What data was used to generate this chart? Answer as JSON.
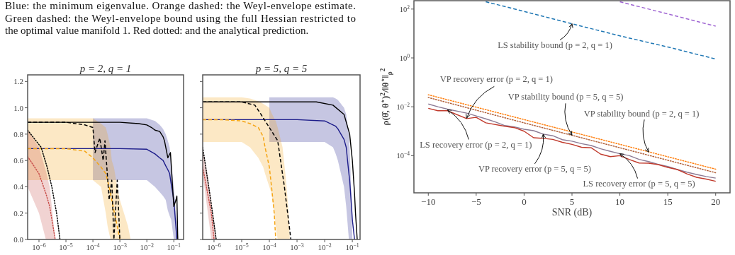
{
  "chart_data": [
    {
      "type": "line",
      "title": "p = 2,  q = 1",
      "log": "x",
      "annotations": [
        "Blue: the minimum eigenvalue. Orange dashed: the Weyl-envelope estimate.",
        "Green dashed: the Weyl-envelope bound using the full Hessian restricted to",
        "the optimal value manifold 1. Red dotted: and the analytical prediction."
      ],
      "xlim": [
        3.8e-07,
        0.23
      ],
      "xticks": [
        {
          "value": 1e-06,
          "label": "10$^{−6}$"
        },
        {
          "value": 1e-05,
          "label": "10$^{−5}$"
        },
        {
          "value": 0.0001,
          "label": "10$^{−4}$"
        },
        {
          "value": 0.001,
          "label": "10$^{−3}$"
        },
        {
          "value": 0.01,
          "label": "10$^{−2}$"
        },
        {
          "value": 0.1,
          "label": "10$^{−1}$"
        }
      ],
      "ylim": [
        0,
        1.25
      ],
      "yticks": [
        {
          "value": 0,
          "label": "0.0"
        },
        0.2,
        0.4,
        0.6,
        0.8,
        {
          "value": 1,
          "label": "1.0"
        },
        1.2
      ],
      "series": [
        {
          "color": "#1c1c8a",
          "line_style": "solid",
          "x": [
            3.8e-07,
            0.0001,
            0.001,
            0.01,
            0.02,
            0.03,
            0.04,
            0.05,
            0.06,
            0.07,
            0.08,
            0.1,
            0.13,
            0.15
          ],
          "values": [
            0.69,
            0.69,
            0.69,
            0.685,
            0.65,
            0.62,
            0.6,
            0.56,
            0.53,
            0.5,
            0.42,
            0.3,
            0,
            null
          ],
          "lower": [
            null,
            0.45,
            0.45,
            0.45,
            0.4,
            0.36,
            0.33,
            0.3,
            0.22,
            0.18,
            0.15,
            0,
            0,
            0
          ],
          "upper": [
            null,
            0.92,
            0.92,
            0.92,
            0.9,
            0.87,
            0.84,
            0.8,
            0.75,
            0.7,
            0.6,
            0.4,
            0.1,
            0
          ]
        },
        {
          "color": "#f5a516",
          "line_style": "dashed",
          "x": [
            3.8e-07,
            4e-06,
            1e-05,
            5e-05,
            0.0001,
            0.0002,
            0.0003,
            0.00035,
            0.00045,
            0.0005,
            0.0006,
            0.0008,
            0.001,
            0.002,
            0.0025
          ],
          "values": [
            0.69,
            0.69,
            0.69,
            0.67,
            0.62,
            0.55,
            0.5,
            0.45,
            0.35,
            0.3,
            0.22,
            0.1,
            0,
            null,
            null
          ],
          "lower": [
            0.45,
            0.45,
            0.45,
            0.45,
            0.45,
            0.4,
            0.2,
            0.1,
            0,
            0,
            0,
            0,
            0,
            0,
            0
          ],
          "upper": [
            0.92,
            0.92,
            0.92,
            0.92,
            0.92,
            0.88,
            0.85,
            0.8,
            0.7,
            0.6,
            0.55,
            0.4,
            0.3,
            0.1,
            0
          ]
        },
        {
          "color": "#c9504c",
          "line_style": "dotted",
          "x": [
            3.8e-07,
            1e-06,
            1.8e-06,
            2.5e-06,
            4e-06
          ],
          "values": [
            0.63,
            0.5,
            0.35,
            0.25,
            0
          ],
          "lower": [
            0.4,
            0.2,
            0,
            0,
            0
          ],
          "upper": [
            0.83,
            0.7,
            0.52,
            0.4,
            0
          ]
        },
        {
          "color": "#000000",
          "line_style": "solid",
          "x": [
            3.8e-07,
            0.001,
            0.005,
            0.01,
            0.015,
            0.02,
            0.03,
            0.04,
            0.045,
            0.06,
            0.075,
            0.09,
            0.1,
            0.12,
            0.13,
            0.14
          ],
          "values": [
            0.89,
            0.89,
            0.88,
            0.87,
            0.85,
            0.83,
            0.82,
            0.78,
            0.75,
            0.62,
            0.66,
            0.4,
            0.25,
            0.3,
            0.33,
            0
          ]
        },
        {
          "color": "#000000",
          "line_style": "dashed",
          "x": [
            3.8e-07,
            1e-05,
            5e-05,
            0.0001,
            0.00012,
            0.00018,
            0.00024,
            0.00028,
            0.0004,
            0.0005,
            0.0006,
            0.0008,
            0.001
          ],
          "values": [
            0.89,
            0.89,
            0.87,
            0.85,
            0.66,
            0.77,
            0.6,
            0.75,
            0.3,
            0.45,
            0,
            0.45,
            0
          ]
        },
        {
          "color": "#000000",
          "line_style": "dotted",
          "x": [
            3.8e-07,
            1.2e-06,
            2e-06,
            3e-06,
            4.5e-06,
            6e-06
          ],
          "values": [
            0.83,
            0.7,
            0.55,
            0.4,
            0.2,
            0
          ]
        }
      ]
    },
    {
      "type": "line",
      "title": "p = 5,  q = 5",
      "log": "x",
      "tick_labels": "x",
      "xlim": [
        3.9e-07,
        0.19
      ],
      "xticks": [
        {
          "value": 1e-06,
          "label": "10$^{−6}$"
        },
        {
          "value": 1e-05,
          "label": "10$^{−5}$"
        },
        {
          "value": 0.0001,
          "label": "10$^{−4}$"
        },
        {
          "value": 0.001,
          "label": "10$^{−3}$"
        },
        {
          "value": 0.01,
          "label": "10$^{−2}$"
        },
        {
          "value": 0.1,
          "label": "10$^{−1}$"
        }
      ],
      "ylim": [
        0,
        1.25
      ],
      "yticks": [
        0,
        0.2,
        0.4,
        0.6,
        0.8,
        1,
        1.2
      ],
      "series": [
        {
          "color": "#1c1c8a",
          "line_style": "solid",
          "x": [
            3.9e-07,
            0.0001,
            0.001,
            0.01,
            0.02,
            0.025,
            0.03,
            0.05,
            0.06,
            0.075,
            0.08,
            0.09,
            0.1,
            0.12
          ],
          "values": [
            0.91,
            0.91,
            0.91,
            0.9,
            0.87,
            0.86,
            0.84,
            0.76,
            0.7,
            0.5,
            0.45,
            0.3,
            0.15,
            0
          ],
          "lower": [
            null,
            0.74,
            0.74,
            0.74,
            0.7,
            0.65,
            0.6,
            0.4,
            0.25,
            0,
            0,
            0,
            0,
            null
          ],
          "upper": [
            null,
            1.08,
            1.08,
            1.08,
            1.08,
            1.07,
            1.06,
            1.0,
            0.95,
            0.8,
            0.7,
            0.4,
            0,
            null
          ]
        },
        {
          "color": "#f5a516",
          "line_style": "dashed",
          "x": [
            3.9e-07,
            2e-06,
            1e-05,
            2e-05,
            4e-05,
            6e-05,
            7e-05,
            0.0001,
            0.00012,
            0.00015,
            0.00017,
            0.0002,
            0.0003,
            0.0004,
            0.0005,
            0.00055
          ],
          "values": [
            0.91,
            0.91,
            0.9,
            0.88,
            0.85,
            0.78,
            0.7,
            0.55,
            0.4,
            0.2,
            0,
            null,
            null,
            null,
            null,
            null
          ],
          "lower": [
            0.74,
            0.74,
            0.74,
            0.7,
            0.62,
            0.55,
            0.5,
            0.4,
            0.35,
            0.2,
            0.1,
            0,
            0,
            0,
            0,
            0
          ],
          "upper": [
            1.08,
            1.08,
            1.08,
            1.07,
            1.05,
            1.03,
            1.02,
            1.0,
            0.96,
            0.92,
            0.9,
            0.85,
            0.7,
            0.45,
            0.2,
            0
          ]
        },
        {
          "color": "#c9504c",
          "line_style": "dotted",
          "x": [
            3.9e-07,
            8e-07,
            1e-06,
            1.2e-06
          ],
          "values": [
            0.55,
            0.2,
            0,
            null
          ],
          "lower": [
            0.5,
            0,
            0,
            0
          ],
          "upper": [
            0.7,
            0.3,
            0.15,
            0
          ]
        },
        {
          "color": "#000000",
          "line_style": "solid",
          "x": [
            3.9e-07,
            0.005,
            0.02,
            0.05,
            0.08,
            0.1,
            0.12,
            0.13,
            0.15
          ],
          "values": [
            1.045,
            1.045,
            1.02,
            0.95,
            0.8,
            0.6,
            0.35,
            0.2,
            0
          ]
        },
        {
          "color": "#000000",
          "line_style": "dashed",
          "x": [
            3.9e-07,
            1e-05,
            3e-05,
            5e-05,
            0.0001,
            0.0002,
            0.00035,
            0.0004,
            0.0006
          ],
          "values": [
            1.045,
            1.045,
            1.02,
            0.95,
            0.85,
            0.75,
            0.4,
            0.3,
            0
          ]
        },
        {
          "color": "#000000",
          "line_style": "dotted",
          "x": [
            3.9e-07,
            7e-07,
            1.2e-06
          ],
          "values": [
            0.7,
            0.35,
            0
          ]
        }
      ]
    },
    {
      "type": "line",
      "log": "y",
      "xlabel": "SNR (dB)",
      "ylabel": "ρ(θ̂, θ$^{⋆}$)$^{2}$/‖θ$^{⋆}$‖$_{ρ}$$^{2}$",
      "xlim": [
        -11.5,
        21.5
      ],
      "xticks": [
        {
          "value": -10,
          "label": "−10"
        },
        {
          "value": -5,
          "label": "−5"
        },
        0,
        5,
        10,
        15,
        20
      ],
      "ylim": [
        3e-06,
        220
      ],
      "yticks": [
        {
          "value": 100,
          "label": "10$^{2}$"
        },
        {
          "value": 1,
          "label": "10$^{0}$"
        },
        {
          "value": 0.01,
          "label": "10$^{−2}$"
        },
        {
          "value": 0.0001,
          "label": "10$^{−4}$"
        }
      ],
      "annotations": [
        {
          "text": "LS stability bound (p = 2, q = 1)",
          "x": 5,
          "y": 25
        },
        {
          "text": "VP recovery error (p = 2, q = 1)",
          "x": -6,
          "y": 0.0034
        },
        {
          "text": "VP stability bound (p = 5, q = 5)",
          "x": 5,
          "y": 0.00069
        },
        {
          "text": "VP stability bound (p = 2, q = 1)",
          "x": 13,
          "y": 0.00014
        },
        {
          "text": "LS recovery error (p = 2, q = 1)",
          "x": -8,
          "y": 0.0075
        },
        {
          "text": "VP recovery error (p = 5, q = 5)",
          "x": 2,
          "y": 0.00076
        },
        {
          "text": "LS recovery error (p = 5, q = 5)",
          "x": 10,
          "y": 0.00012
        }
      ],
      "series": [
        {
          "color": "#1f77b4",
          "line_style": "dashed",
          "x": [
            -4,
            0,
            5,
            10,
            15,
            20
          ],
          "values": [
            200,
            80,
            25,
            8,
            2.8,
            0.9
          ]
        },
        {
          "color": "#a066d3",
          "line_style": "dashed",
          "x": [
            10,
            15,
            20
          ],
          "values": [
            200,
            63,
            20
          ]
        },
        {
          "color": "#ff7f0e",
          "line_style": "dotted",
          "x": [
            -10,
            0,
            10,
            20
          ],
          "values": [
            0.031,
            0.003,
            0.00029,
            2.8e-05
          ]
        },
        {
          "color": "#b0603a",
          "line_style": "dotted",
          "x": [
            -10,
            0,
            10,
            20
          ],
          "values": [
            0.024,
            0.0022,
            0.00021,
            2e-05
          ]
        },
        {
          "color": "#8c7b95",
          "line_style": "solid",
          "x": [
            -10,
            -9,
            -8,
            -6,
            -5,
            -4,
            -3,
            -2,
            -1,
            0,
            1,
            2,
            3,
            4,
            5,
            6,
            7,
            8,
            9,
            10,
            11,
            12,
            13,
            14,
            15,
            16,
            17,
            18,
            19,
            20
          ],
          "values": [
            0.013,
            0.01,
            0.008,
            0.0055,
            0.0042,
            0.0032,
            0.0024,
            0.0017,
            0.0015,
            0.0012,
            0.00105,
            0.00076,
            0.00065,
            0.00045,
            0.00039,
            0.00031,
            0.00026,
            0.00019,
            0.00015,
            0.00012,
            0.0001,
            7e-05,
            5.7e-05,
            4.4e-05,
            3.6e-05,
            2.7e-05,
            2.1e-05,
            1.7e-05,
            1.4e-05,
            1.2e-05
          ]
        },
        {
          "color": "#c0392b",
          "line_style": "solid",
          "x": [
            -10,
            -9,
            -8,
            -6,
            -5,
            -4,
            -2,
            -1,
            0,
            1,
            2,
            3,
            4,
            5,
            6,
            7,
            8,
            9,
            10,
            11,
            12,
            13,
            14,
            15,
            16,
            17,
            18,
            19,
            20
          ],
          "values": [
            0.0086,
            0.0069,
            0.0069,
            0.0033,
            0.0037,
            0.0022,
            0.0016,
            0.0014,
            0.001,
            0.00054,
            0.00051,
            0.00046,
            0.00035,
            0.00029,
            0.00022,
            0.00021,
            0.000115,
            9.1e-05,
            0.0001,
            6.9e-05,
            5e-05,
            4.9e-05,
            4.3e-05,
            3.3e-05,
            2.7e-05,
            1.8e-05,
            1.3e-05,
            1.1e-05,
            8.9e-06
          ]
        }
      ]
    }
  ]
}
